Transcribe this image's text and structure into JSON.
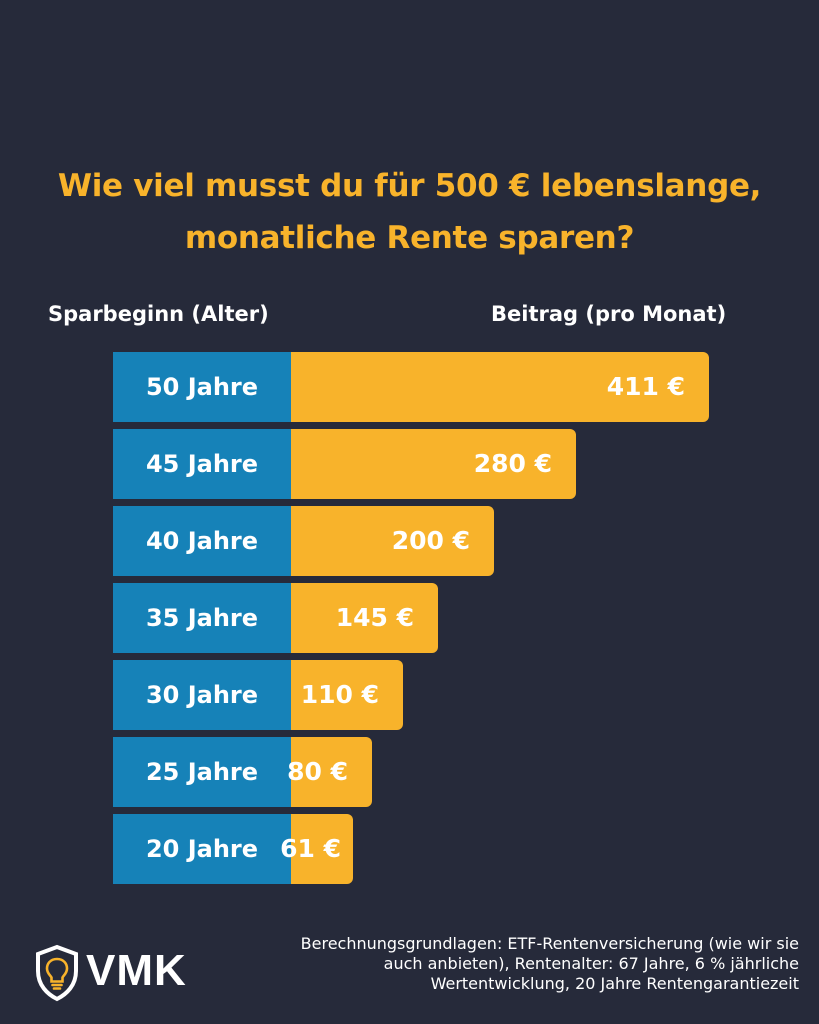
{
  "header": {
    "title_line1": "Wie viel musst du für 500 € lebenslange,",
    "title_line2": "monatliche Rente sparen?",
    "col_left": "Sparbeginn (Alter)",
    "col_right": "Beitrag (pro Monat)"
  },
  "chart_data": {
    "type": "bar",
    "orientation": "horizontal",
    "title": "Wie viel musst du für 500 € lebenslange, monatliche Rente sparen?",
    "xlabel": "Beitrag (pro Monat)",
    "ylabel": "Sparbeginn (Alter)",
    "categories": [
      "50 Jahre",
      "45 Jahre",
      "40 Jahre",
      "35 Jahre",
      "30 Jahre",
      "25 Jahre",
      "20 Jahre"
    ],
    "values": [
      411,
      280,
      200,
      145,
      110,
      80,
      61
    ],
    "value_labels": [
      "411 €",
      "280 €",
      "200 €",
      "145 €",
      "110 €",
      "80 €",
      "61 €"
    ],
    "unit": "€",
    "grid": false,
    "colors": {
      "bar": "#f8b32b",
      "label_box": "#1682b8",
      "background": "#262a3a",
      "title": "#f8b32b"
    }
  },
  "footer": {
    "logo_text": "VMK",
    "logo_icon": "lightbulb-shield-icon",
    "footnote": "Berechnungsgrundlagen: ETF-Rentenversicherung (wie wir sie auch anbieten), Rentenalter: 67 Jahre, 6 % jährliche Wertentwicklung, 20 Jahre Rentengarantiezeit"
  }
}
